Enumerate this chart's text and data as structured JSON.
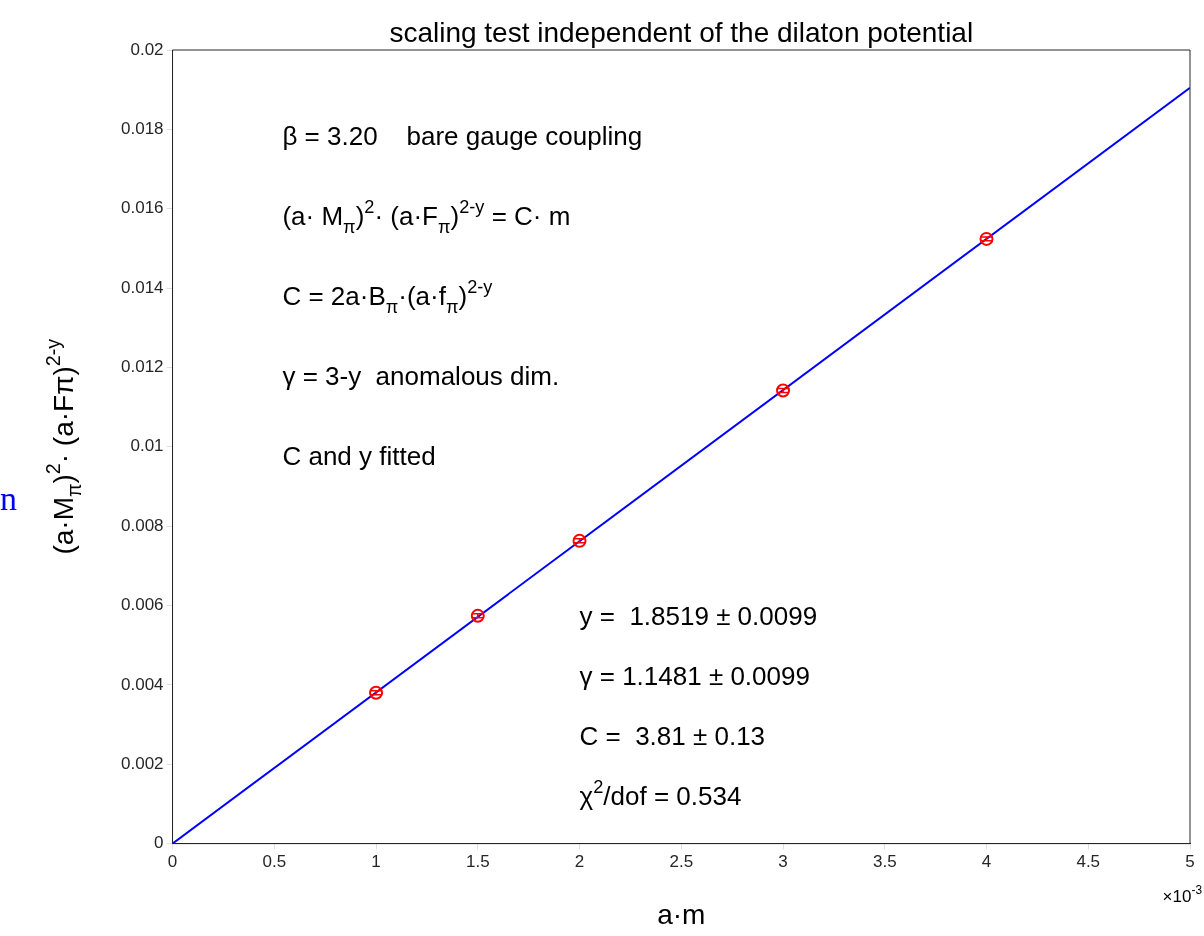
{
  "chart_data": {
    "type": "scatter",
    "title": "scaling test independent of the dilaton potential",
    "xlabel": "a·m",
    "ylabel": "(a·M$_{π}$)$^{2}$· (a·Fπ)$^{2-y}$",
    "xlim": [
      0,
      5
    ],
    "xticks": [
      0,
      0.5,
      1,
      1.5,
      2,
      2.5,
      3,
      3.5,
      4,
      4.5,
      5
    ],
    "ylim": [
      0,
      0.02
    ],
    "yticks": [
      0,
      0.002,
      0.004,
      0.006,
      0.008,
      0.01,
      0.012,
      0.014,
      0.016,
      0.018,
      0.02
    ],
    "grid": false,
    "series": [
      {
        "type": "scatter",
        "marker": "circle",
        "color": "#ff0000",
        "x": [
          1,
          1.5,
          2,
          3,
          4
        ],
        "values": [
          0.0038,
          0.00574,
          0.00763,
          0.01142,
          0.01524
        ],
        "errors": [
          5e-05,
          5e-05,
          5e-05,
          5e-05,
          5e-05
        ]
      },
      {
        "type": "line",
        "color": "#0000ff",
        "x": [
          0,
          5
        ],
        "values": [
          0,
          0.01905
        ]
      }
    ],
    "annotations": [
      "β = 3.20    bare gauge coupling",
      "(a· M$_{π}$)$^{2}$· (a·F$_{π}$)$^{2-y}$ = C· m",
      "C = 2a·B$_{π}$·(a·f$_{π}$)$^{2-y}$",
      "γ = 3-y  anomalous dim.",
      "C and y fitted",
      "y =  1.8519 ± 0.0099",
      "γ = 1.1481 ± 0.0099",
      "C =  3.81 ± 0.13",
      "χ$^{2}$/dof = 0.534",
      "×10$^{-3}$",
      "n"
    ]
  }
}
